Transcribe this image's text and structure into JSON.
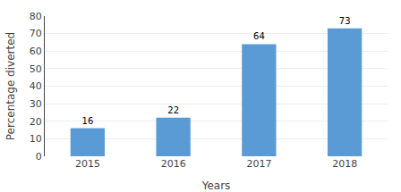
{
  "chart_data": {
    "type": "bar",
    "xlabel": "Years",
    "ylabel": "Percentage diverted",
    "categories": [
      "2015",
      "2016",
      "2017",
      "2018"
    ],
    "values": [
      16,
      22,
      64,
      73
    ],
    "color": "#5B9BD5",
    "ylim": [
      0,
      80
    ],
    "yticks": [
      0,
      10,
      20,
      30,
      40,
      50,
      60,
      70,
      80
    ],
    "grid": true,
    "data_labels": true
  }
}
